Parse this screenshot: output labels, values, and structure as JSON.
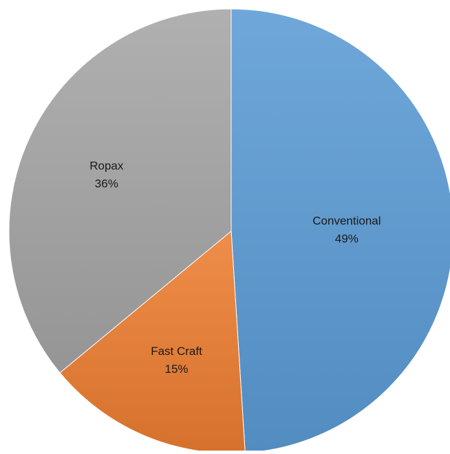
{
  "chart_data": {
    "type": "pie",
    "title": "",
    "categories": [
      "Conventional",
      "Fast Craft",
      "Ropax"
    ],
    "values": [
      49,
      15,
      36
    ],
    "value_labels": [
      "49%",
      "15%",
      "36%"
    ],
    "colors": [
      "#5b9bd5",
      "#ed7d31",
      "#a5a5a5"
    ],
    "start_angle_deg": 0,
    "direction": "clockwise",
    "gradient": true,
    "legend": "none",
    "data_labels": "inside"
  }
}
